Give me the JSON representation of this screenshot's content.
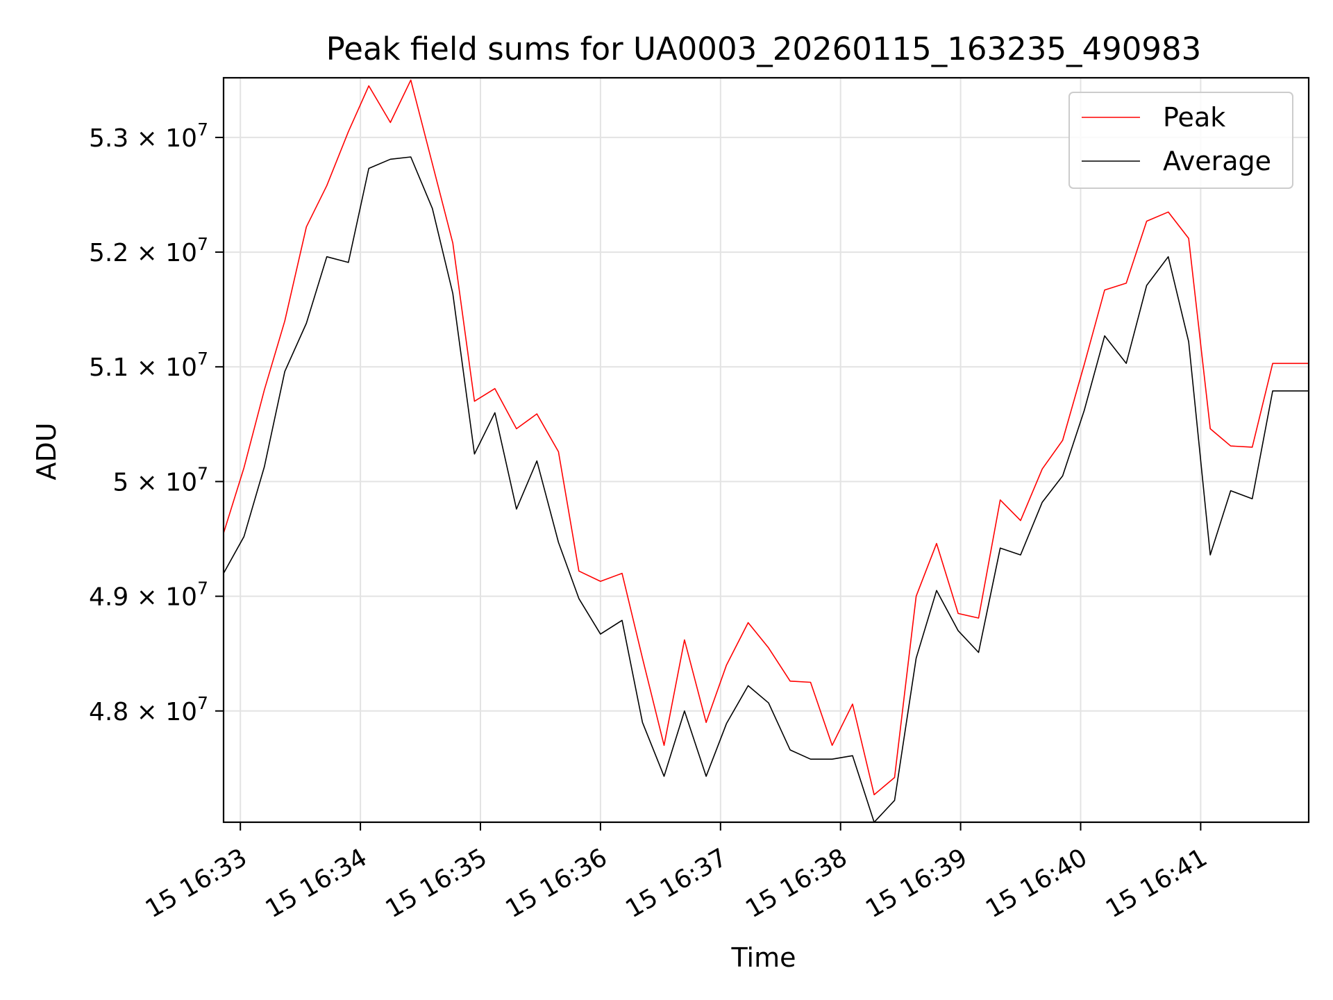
{
  "chart_data": {
    "type": "line",
    "title": "Peak field sums for UA0003_20260115_163235_490983",
    "xlabel": "Time",
    "ylabel": "ADU",
    "grid": true,
    "legend_position": "top-right",
    "x_unit": "minutes after 15 16:32:00",
    "xlim": [
      0.86,
      9.9
    ],
    "ylim": [
      47030000.0,
      53520000.0
    ],
    "x_ticks": [
      {
        "value": 1,
        "label": "15 16:33"
      },
      {
        "value": 2,
        "label": "15 16:34"
      },
      {
        "value": 3,
        "label": "15 16:35"
      },
      {
        "value": 4,
        "label": "15 16:36"
      },
      {
        "value": 5,
        "label": "15 16:37"
      },
      {
        "value": 6,
        "label": "15 16:38"
      },
      {
        "value": 7,
        "label": "15 16:39"
      },
      {
        "value": 8,
        "label": "15 16:40"
      },
      {
        "value": 9,
        "label": "15 16:41"
      }
    ],
    "y_ticks": [
      {
        "value": 48000000.0,
        "mantissa": "4.8",
        "exponent": "7"
      },
      {
        "value": 49000000.0,
        "mantissa": "4.9",
        "exponent": "7"
      },
      {
        "value": 50000000.0,
        "mantissa": "5",
        "exponent": "7"
      },
      {
        "value": 51000000.0,
        "mantissa": "5.1",
        "exponent": "7"
      },
      {
        "value": 52000000.0,
        "mantissa": "5.2",
        "exponent": "7"
      },
      {
        "value": 53000000.0,
        "mantissa": "5.3",
        "exponent": "7"
      }
    ],
    "x": [
      0.86,
      1.03,
      1.2,
      1.37,
      1.55,
      1.72,
      1.9,
      2.07,
      2.25,
      2.42,
      2.6,
      2.77,
      2.95,
      3.12,
      3.3,
      3.47,
      3.65,
      3.82,
      4.0,
      4.18,
      4.35,
      4.53,
      4.7,
      4.88,
      5.05,
      5.23,
      5.4,
      5.58,
      5.75,
      5.93,
      6.1,
      6.28,
      6.45,
      6.63,
      6.8,
      6.98,
      7.15,
      7.33,
      7.5,
      7.68,
      7.85,
      8.03,
      8.2,
      8.38,
      8.55,
      8.73,
      8.9,
      9.08,
      9.25,
      9.43,
      9.6,
      9.9
    ],
    "series": [
      {
        "name": "Peak",
        "color": "#ff0000",
        "values": [
          49550000.0,
          50120000.0,
          50800000.0,
          51400000.0,
          52220000.0,
          52580000.0,
          53050000.0,
          53450000.0,
          53130000.0,
          53500000.0,
          52770000.0,
          52080000.0,
          50700000.0,
          50810000.0,
          50460000.0,
          50590000.0,
          50260000.0,
          49220000.0,
          49130000.0,
          49200000.0,
          48460000.0,
          47700000.0,
          48620000.0,
          47900000.0,
          48400000.0,
          48770000.0,
          48550000.0,
          48260000.0,
          48250000.0,
          47700000.0,
          48060000.0,
          47270000.0,
          47420000.0,
          49000000.0,
          49460000.0,
          48850000.0,
          48810000.0,
          49840000.0,
          49660000.0,
          50110000.0,
          50360000.0,
          51020000.0,
          51670000.0,
          51730000.0,
          52270000.0,
          52350000.0,
          52120000.0,
          50460000.0,
          50310000.0,
          50300000.0,
          51030000.0,
          51030000.0
        ]
      },
      {
        "name": "Average",
        "color": "#000000",
        "values": [
          49200000.0,
          49520000.0,
          50130000.0,
          50960000.0,
          51380000.0,
          51960000.0,
          51910000.0,
          52730000.0,
          52810000.0,
          52830000.0,
          52380000.0,
          51640000.0,
          50240000.0,
          50600000.0,
          49760000.0,
          50180000.0,
          49470000.0,
          48980000.0,
          48670000.0,
          48790000.0,
          47900000.0,
          47430000.0,
          48000000.0,
          47430000.0,
          47890000.0,
          48220000.0,
          48070000.0,
          47660000.0,
          47580000.0,
          47580000.0,
          47610000.0,
          47030000.0,
          47220000.0,
          48460000.0,
          49050000.0,
          48700000.0,
          48510000.0,
          49420000.0,
          49360000.0,
          49820000.0,
          50050000.0,
          50620000.0,
          51270000.0,
          51030000.0,
          51710000.0,
          51960000.0,
          51220000.0,
          49360000.0,
          49920000.0,
          49850000.0,
          50790000.0,
          50790000.0
        ]
      }
    ]
  }
}
